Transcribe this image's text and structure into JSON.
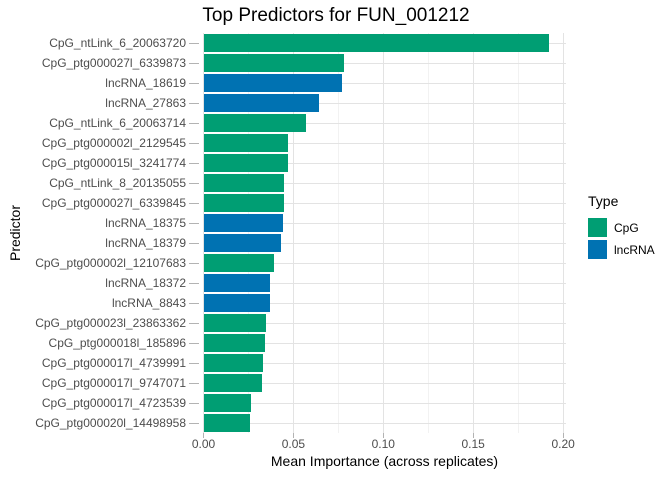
{
  "chart_data": {
    "type": "bar",
    "orientation": "horizontal",
    "title": "Top Predictors for FUN_001212",
    "xlabel": "Mean Importance (across replicates)",
    "ylabel": "Predictor",
    "xlim": [
      0,
      0.2013
    ],
    "x_major_ticks": [
      0,
      0.05,
      0.1,
      0.15,
      0.2
    ],
    "x_tick_labels": [
      "0.00",
      "0.05",
      "0.10",
      "0.15",
      "0.20"
    ],
    "x_minor_ticks": [
      0.025,
      0.075,
      0.125,
      0.175
    ],
    "grid": true,
    "type_colors": {
      "CpG": "#009E73",
      "lncRNA": "#0072B2"
    },
    "legend": {
      "title": "Type",
      "position": "right",
      "entries": [
        {
          "label": "CpG",
          "color": "#009E73"
        },
        {
          "label": "lncRNA",
          "color": "#0072B2"
        }
      ]
    },
    "bars": [
      {
        "category": "CpG_ntLink_6_20063720",
        "type": "CpG",
        "value": 0.192
      },
      {
        "category": "CpG_ptg000027l_6339873",
        "type": "CpG",
        "value": 0.078
      },
      {
        "category": "lncRNA_18619",
        "type": "lncRNA",
        "value": 0.077
      },
      {
        "category": "lncRNA_27863",
        "type": "lncRNA",
        "value": 0.064
      },
      {
        "category": "CpG_ntLink_6_20063714",
        "type": "CpG",
        "value": 0.057
      },
      {
        "category": "CpG_ptg000002l_2129545",
        "type": "CpG",
        "value": 0.047
      },
      {
        "category": "CpG_ptg000015l_3241774",
        "type": "CpG",
        "value": 0.047
      },
      {
        "category": "CpG_ntLink_8_20135055",
        "type": "CpG",
        "value": 0.045
      },
      {
        "category": "CpG_ptg000027l_6339845",
        "type": "CpG",
        "value": 0.045
      },
      {
        "category": "lncRNA_18375",
        "type": "lncRNA",
        "value": 0.044
      },
      {
        "category": "lncRNA_18379",
        "type": "lncRNA",
        "value": 0.043
      },
      {
        "category": "CpG_ptg000002l_12107683",
        "type": "CpG",
        "value": 0.039
      },
      {
        "category": "lncRNA_18372",
        "type": "lncRNA",
        "value": 0.037
      },
      {
        "category": "lncRNA_8843",
        "type": "lncRNA",
        "value": 0.037
      },
      {
        "category": "CpG_ptg000023l_23863362",
        "type": "CpG",
        "value": 0.035
      },
      {
        "category": "CpG_ptg000018l_185896",
        "type": "CpG",
        "value": 0.034
      },
      {
        "category": "CpG_ptg000017l_4739991",
        "type": "CpG",
        "value": 0.033
      },
      {
        "category": "CpG_ptg000017l_9747071",
        "type": "CpG",
        "value": 0.0325
      },
      {
        "category": "CpG_ptg000017l_4723539",
        "type": "CpG",
        "value": 0.0265
      },
      {
        "category": "CpG_ptg000020l_14498958",
        "type": "CpG",
        "value": 0.026
      }
    ]
  }
}
